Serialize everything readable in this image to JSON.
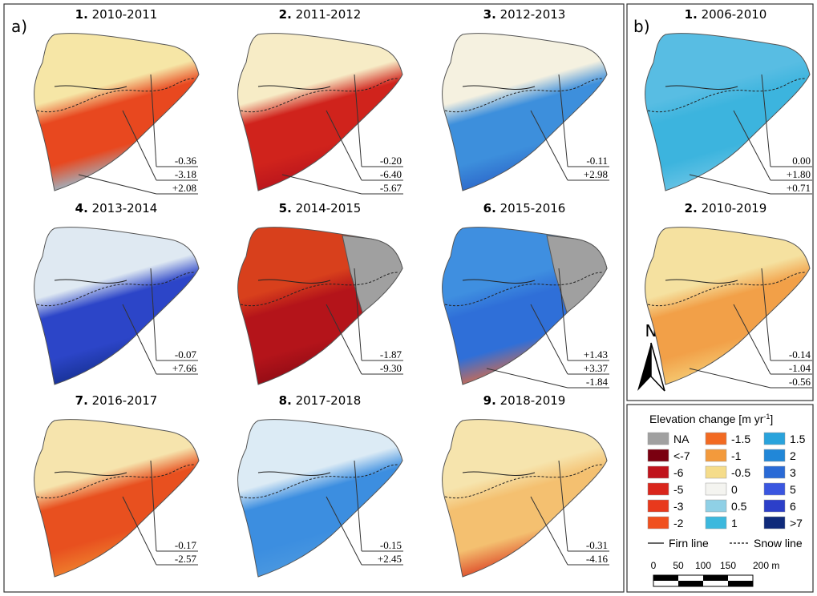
{
  "panel_a": {
    "label": "a)",
    "maps": [
      {
        "number": "1.",
        "period": "2010-2011",
        "labels": [
          "-0.36",
          "-3.18",
          "+2.08"
        ],
        "fill": [
          "#f6e6a6",
          "#e8481f",
          "#8ecde8"
        ]
      },
      {
        "number": "2.",
        "period": "2011-2012",
        "labels": [
          "-0.20",
          "-6.40",
          "-5.67"
        ],
        "fill": [
          "#f7ecc6",
          "#d0231c",
          "#b5121c"
        ]
      },
      {
        "number": "3.",
        "period": "2012-2013",
        "labels": [
          "-0.11",
          "+2.98"
        ],
        "fill": [
          "#f5f1e0",
          "#3d8fdc",
          "#2a62c8"
        ]
      },
      {
        "number": "4.",
        "period": "2013-2014",
        "labels": [
          "-0.07",
          "+7.66"
        ],
        "fill": [
          "#dfe9f2",
          "#2c45c8",
          "#142e8c"
        ]
      },
      {
        "number": "5.",
        "period": "2014-2015",
        "labels": [
          "-1.87",
          "-9.30"
        ],
        "fill": [
          "#d8401c",
          "#b4141a",
          "#8c0a14"
        ],
        "na": true
      },
      {
        "number": "6.",
        "period": "2015-2016",
        "labels": [
          "+1.43",
          "+3.37",
          "-1.84"
        ],
        "fill": [
          "#3f8fe0",
          "#2f6fd8",
          "#e86a3a"
        ],
        "na": true
      },
      {
        "number": "7.",
        "period": "2016-2017",
        "labels": [
          "-0.17",
          "-2.57"
        ],
        "fill": [
          "#f6e4ad",
          "#e8501f",
          "#f08a30"
        ]
      },
      {
        "number": "8.",
        "period": "2017-2018",
        "labels": [
          "-0.15",
          "+2.45"
        ],
        "fill": [
          "#dcebf5",
          "#3c8ee0",
          "#4d9ae0"
        ]
      },
      {
        "number": "9.",
        "period": "2018-2019",
        "labels": [
          "-0.31",
          "-4.16"
        ],
        "fill": [
          "#f6e4ad",
          "#f4c070",
          "#d9361c"
        ]
      }
    ]
  },
  "panel_b": {
    "label": "b)",
    "north": "N",
    "maps": [
      {
        "number": "1.",
        "period": "2006-2010",
        "labels": [
          "0.00",
          "+1.80",
          "+0.71"
        ],
        "fill": [
          "#58bde3",
          "#3cb4de",
          "#6fc6e6"
        ]
      },
      {
        "number": "2.",
        "period": "2010-2019",
        "labels": [
          "-0.14",
          "-1.04",
          "-0.56"
        ],
        "fill": [
          "#f5e1a0",
          "#f2a048",
          "#f5d27a"
        ]
      }
    ]
  },
  "legend": {
    "title": "Elevation change [m yr",
    "title_sup": "-1",
    "title_end": "]",
    "items": [
      {
        "label": "NA",
        "color": "#a0a0a0"
      },
      {
        "label": "<-7",
        "color": "#7a0010"
      },
      {
        "label": "-6",
        "color": "#c0131c"
      },
      {
        "label": "-5",
        "color": "#d9261c"
      },
      {
        "label": "-3",
        "color": "#e8391c"
      },
      {
        "label": "-2",
        "color": "#f0501e"
      },
      {
        "label": "-1.5",
        "color": "#f26a22"
      },
      {
        "label": "-1",
        "color": "#f39a3c"
      },
      {
        "label": "-0.5",
        "color": "#f5dc8a"
      },
      {
        "label": "0",
        "color": "#f4f4f0"
      },
      {
        "label": "0.5",
        "color": "#8fd0e6"
      },
      {
        "label": "1",
        "color": "#3cb8dd"
      },
      {
        "label": "1.5",
        "color": "#29a3dc"
      },
      {
        "label": "2",
        "color": "#2187d8"
      },
      {
        "label": "3",
        "color": "#2a6ad6"
      },
      {
        "label": "5",
        "color": "#3a56e0"
      },
      {
        "label": "6",
        "color": "#2c3fc9"
      },
      {
        "label": ">7",
        "color": "#0f2a7a"
      }
    ],
    "firn_line": "Firn line",
    "snow_line": "Snow line",
    "scale": [
      "0",
      "50",
      "100",
      "150",
      "200 m"
    ]
  }
}
